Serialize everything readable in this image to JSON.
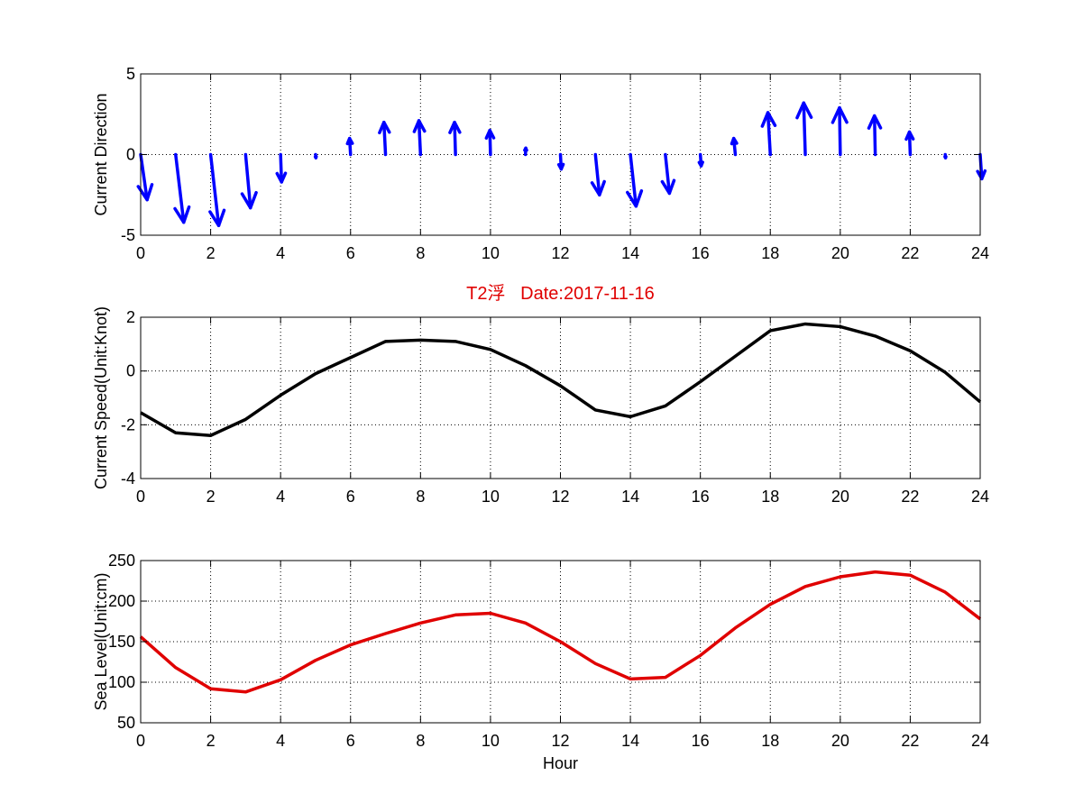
{
  "chart_data": [
    {
      "type": "quiver",
      "title": "",
      "xlabel": "",
      "ylabel": "Current Direction",
      "xlim": [
        0,
        24
      ],
      "ylim": [
        -5,
        5
      ],
      "xticks": [
        "0",
        "2",
        "4",
        "6",
        "8",
        "10",
        "12",
        "14",
        "16",
        "18",
        "20",
        "22",
        "24"
      ],
      "yticks": [
        "-5",
        "0",
        "5"
      ],
      "grid": true,
      "color": "#0000ff",
      "x": [
        0,
        1,
        2,
        3,
        4,
        5,
        6,
        7,
        8,
        9,
        10,
        11,
        12,
        13,
        14,
        15,
        16,
        17,
        18,
        19,
        20,
        21,
        22,
        23,
        24
      ],
      "u": [
        0.4,
        0.5,
        0.5,
        0.3,
        0.06,
        0.02,
        -0.06,
        -0.1,
        -0.1,
        -0.06,
        -0.04,
        0.02,
        0.05,
        0.25,
        0.35,
        0.25,
        0.05,
        -0.1,
        -0.15,
        -0.1,
        -0.05,
        -0.05,
        -0.05,
        0.02,
        0.1
      ],
      "v": [
        -2.8,
        -4.2,
        -4.4,
        -3.3,
        -1.7,
        -0.2,
        1.0,
        2.0,
        2.1,
        2.0,
        1.5,
        0.4,
        -0.9,
        -2.5,
        -3.2,
        -2.4,
        -0.7,
        1.0,
        2.6,
        3.2,
        2.9,
        2.4,
        1.4,
        -0.2,
        -1.5
      ]
    },
    {
      "type": "line",
      "title": "T2浮   Date:2017-11-16",
      "xlabel": "",
      "ylabel": "Current Speed(Unit:Knot)",
      "xlim": [
        0,
        24
      ],
      "ylim": [
        -4,
        2
      ],
      "xticks": [
        "0",
        "2",
        "4",
        "6",
        "8",
        "10",
        "12",
        "14",
        "16",
        "18",
        "20",
        "22",
        "24"
      ],
      "yticks": [
        "-4",
        "-2",
        "0",
        "2"
      ],
      "grid": true,
      "color": "#000000",
      "title_color": "#e00000",
      "x": [
        0,
        1,
        2,
        3,
        4,
        5,
        6,
        7,
        8,
        9,
        10,
        11,
        12,
        13,
        14,
        15,
        16,
        17,
        18,
        19,
        20,
        21,
        22,
        23,
        24
      ],
      "y": [
        -1.55,
        -2.3,
        -2.4,
        -1.8,
        -0.9,
        -0.1,
        0.5,
        1.1,
        1.15,
        1.1,
        0.8,
        0.2,
        -0.55,
        -1.45,
        -1.7,
        -1.3,
        -0.4,
        0.55,
        1.5,
        1.75,
        1.65,
        1.3,
        0.75,
        -0.05,
        -1.15
      ]
    },
    {
      "type": "line",
      "title": "",
      "xlabel": "Hour",
      "ylabel": "Sea Level(Unit:cm)",
      "xlim": [
        0,
        24
      ],
      "ylim": [
        50,
        250
      ],
      "xticks": [
        "0",
        "2",
        "4",
        "6",
        "8",
        "10",
        "12",
        "14",
        "16",
        "18",
        "20",
        "22",
        "24"
      ],
      "yticks": [
        "50",
        "100",
        "150",
        "200",
        "250"
      ],
      "grid": true,
      "color": "#e00000",
      "x": [
        0,
        1,
        2,
        3,
        4,
        5,
        6,
        7,
        8,
        9,
        10,
        11,
        12,
        13,
        14,
        15,
        16,
        17,
        18,
        19,
        20,
        21,
        22,
        23,
        24
      ],
      "y": [
        156,
        118,
        92,
        88,
        103,
        127,
        146,
        160,
        173,
        183,
        185,
        173,
        150,
        123,
        104,
        106,
        133,
        167,
        196,
        218,
        230,
        236,
        232,
        211,
        178
      ]
    }
  ]
}
